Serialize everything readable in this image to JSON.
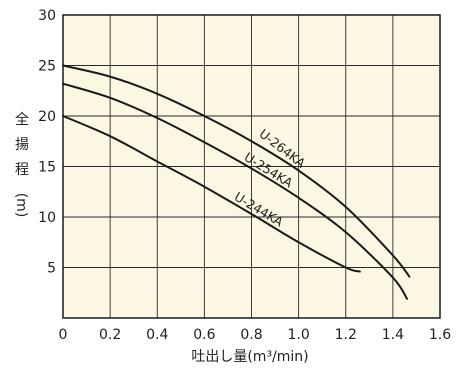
{
  "chart_data": {
    "type": "line",
    "title": "",
    "xlabel": "吐出し量(m³/min)",
    "ylabel_chars": [
      "全",
      "揚",
      "程",
      "(m)"
    ],
    "xlim": [
      0,
      1.6
    ],
    "ylim": [
      0,
      30
    ],
    "x_ticks": [
      "0",
      "0.2",
      "0.4",
      "0.6",
      "0.8",
      "1.0",
      "1.2",
      "1.4",
      "1.6"
    ],
    "y_ticks": [
      "5",
      "10",
      "15",
      "20",
      "25",
      "30"
    ],
    "grid": true,
    "colors": {
      "background": "#fcf7e3",
      "grid": "#2a2a2a",
      "line": "#1a1a1a"
    },
    "series": [
      {
        "name": "U-264KA",
        "x": [
          0,
          0.2,
          0.4,
          0.6,
          0.8,
          1.0,
          1.2,
          1.4,
          1.47
        ],
        "y": [
          25.0,
          23.9,
          22.2,
          20.0,
          17.5,
          14.6,
          11.0,
          6.2,
          4.1
        ]
      },
      {
        "name": "U-254KA",
        "x": [
          0,
          0.2,
          0.4,
          0.6,
          0.8,
          1.0,
          1.2,
          1.4,
          1.46
        ],
        "y": [
          23.2,
          21.8,
          19.8,
          17.4,
          14.8,
          11.9,
          8.5,
          4.0,
          1.9
        ]
      },
      {
        "name": "U-244KA",
        "x": [
          0,
          0.2,
          0.4,
          0.6,
          0.8,
          1.0,
          1.2,
          1.26
        ],
        "y": [
          20.0,
          18.0,
          15.5,
          13.0,
          10.3,
          7.5,
          5.0,
          4.6
        ]
      }
    ]
  }
}
